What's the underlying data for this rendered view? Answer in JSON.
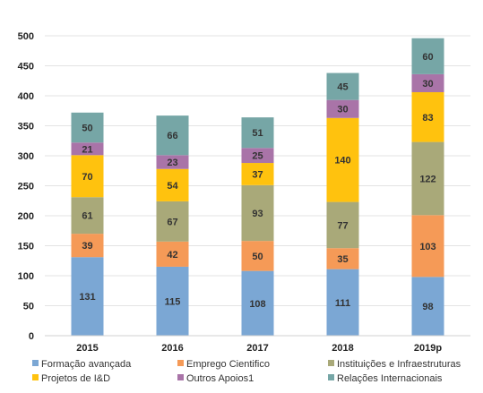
{
  "chart_data": {
    "type": "bar",
    "stacked": true,
    "categories": [
      "2015",
      "2016",
      "2017",
      "2018",
      "2019p"
    ],
    "series": [
      {
        "name": "Formação avançada",
        "color": "#7BA7D4",
        "values": [
          131,
          115,
          108,
          111,
          98
        ]
      },
      {
        "name": "Emprego Cientifico",
        "color": "#F59A57",
        "values": [
          39,
          42,
          50,
          35,
          103
        ]
      },
      {
        "name": "Instituições e Infraestruturas",
        "color": "#A9A979",
        "values": [
          61,
          67,
          93,
          77,
          122
        ]
      },
      {
        "name": "Projetos de I&D",
        "color": "#FFC20E",
        "values": [
          70,
          54,
          37,
          140,
          83
        ]
      },
      {
        "name": "Outros Apoios1",
        "color": "#A974A8",
        "values": [
          21,
          23,
          25,
          30,
          30
        ]
      },
      {
        "name": "Relações Internacionais",
        "color": "#76A6A6",
        "values": [
          50,
          66,
          51,
          45,
          60
        ]
      }
    ],
    "yticks": [
      0,
      50,
      100,
      150,
      200,
      250,
      300,
      350,
      400,
      450,
      500
    ],
    "ylim": [
      0,
      500
    ],
    "grid": true,
    "legend_position": "bottom",
    "title": "",
    "xlabel": "",
    "ylabel": ""
  }
}
